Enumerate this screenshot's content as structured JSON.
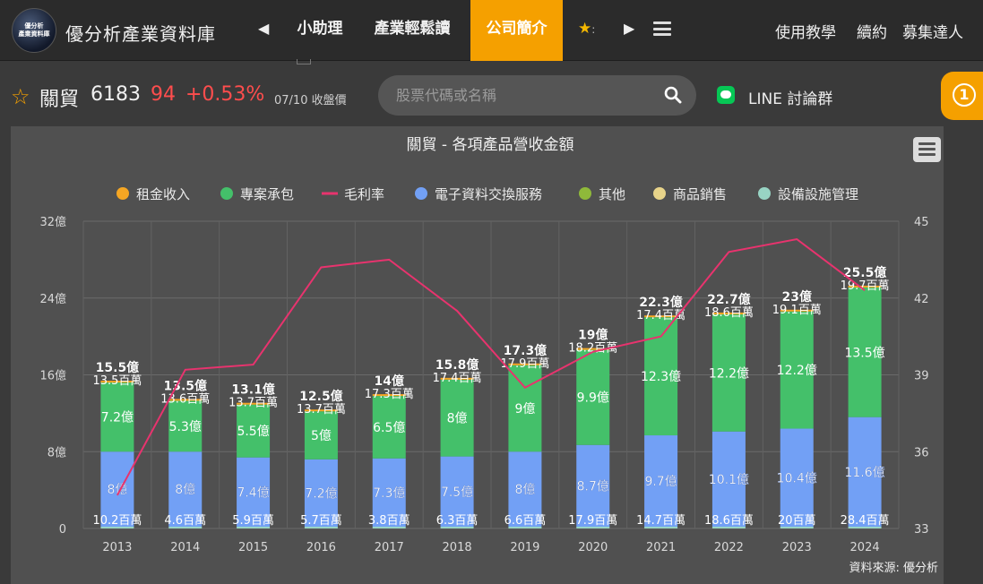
{
  "topbar": {
    "logo_line1": "優分析",
    "logo_line2": "產業資料庫",
    "site_title": "優分析產業資料庫",
    "nav_items": [
      {
        "label": "小助理"
      },
      {
        "label": "產業輕鬆讀"
      },
      {
        "label": "公司簡介"
      }
    ],
    "right_links": [
      {
        "label": "使用教學"
      },
      {
        "label": "續約"
      },
      {
        "label": "募集達人"
      }
    ],
    "colors": {
      "active_tab": "#f5a000"
    }
  },
  "stock": {
    "name": "關貿",
    "code": "6183",
    "price": "94",
    "change": "+0.53%",
    "date_label": "07/10 收盤價",
    "price_color": "#ff4d4d"
  },
  "search": {
    "placeholder": "股票代碼或名稱"
  },
  "line_group": {
    "label": "LINE 討論群"
  },
  "notification": {
    "count": "1"
  },
  "chart_data": {
    "type": "bar",
    "title": "關貿 - 各項產品營收金額",
    "source": "資料來源: 優分析",
    "categories": [
      "2013",
      "2014",
      "2015",
      "2016",
      "2017",
      "2018",
      "2019",
      "2020",
      "2021",
      "2022",
      "2023",
      "2024"
    ],
    "y_left": {
      "ticks": [
        "0",
        "8億",
        "16億",
        "24億",
        "32億"
      ],
      "range": [
        0,
        32
      ],
      "unit": "億"
    },
    "y_right": {
      "ticks": [
        "33",
        "36",
        "39",
        "42",
        "45"
      ],
      "range": [
        33,
        45
      ]
    },
    "legend": [
      {
        "name": "租金收入",
        "color": "#f5a623",
        "marker": "dot"
      },
      {
        "name": "專案承包",
        "color": "#44c06a",
        "marker": "dot"
      },
      {
        "name": "毛利率",
        "color": "#e8336e",
        "marker": "line"
      },
      {
        "name": "電子資料交換服務",
        "color": "#72a0f5",
        "marker": "dot"
      },
      {
        "name": "其他",
        "color": "#8fb93a",
        "marker": "dot"
      },
      {
        "name": "商品銷售",
        "color": "#e8d48a",
        "marker": "dot"
      },
      {
        "name": "設備設施管理",
        "color": "#98d4c4",
        "marker": "dot"
      }
    ],
    "series": [
      {
        "name": "電子資料交換服務",
        "color": "#72a0f5",
        "values": [
          8,
          8,
          7.4,
          7.2,
          7.3,
          7.5,
          8,
          8.7,
          9.7,
          10.1,
          10.4,
          11.6
        ],
        "labels": [
          "8億",
          "8億",
          "7.4億",
          "7.2億",
          "7.3億",
          "7.5億",
          "8億",
          "8.7億",
          "9.7億",
          "10.1億",
          "10.4億",
          "11.6億"
        ]
      },
      {
        "name": "專案承包",
        "color": "#44c06a",
        "values": [
          7.2,
          5.3,
          5.5,
          5,
          6.5,
          8,
          9,
          9.9,
          12.3,
          12.2,
          12.2,
          13.5
        ],
        "labels": [
          "7.2億",
          "5.3億",
          "5.5億",
          "5億",
          "6.5億",
          "8億",
          "9億",
          "9.9億",
          "12.3億",
          "12.2億",
          "12.2億",
          "13.5億"
        ]
      },
      {
        "name": "租金收入",
        "color": "#f5a623",
        "values": [
          0.135,
          0.136,
          0.137,
          0.137,
          0.173,
          0.174,
          0.179,
          0.182,
          0.174,
          0.186,
          0.191,
          0.197
        ],
        "labels": [
          "13.5百萬",
          "13.6百萬",
          "13.7百萬",
          "13.7百萬",
          "17.3百萬",
          "17.4百萬",
          "17.9百萬",
          "18.2百萬",
          "17.4百萬",
          "18.6百萬",
          "19.1百萬",
          "19.7百萬"
        ]
      },
      {
        "name": "設備設施管理",
        "color": "#98d4c4",
        "bottom_labels": [
          "10.2百萬",
          "4.6百萬",
          "5.9百萬",
          "5.7百萬",
          "3.8百萬",
          "6.3百萬",
          "6.6百萬",
          "17.9百萬",
          "14.7百萬",
          "18.6百萬",
          "20百萬",
          "28.4百萬"
        ]
      }
    ],
    "totals": [
      "15.5億",
      "13.5億",
      "13.1億",
      "12.5億",
      "14億",
      "15.8億",
      "17.3億",
      "19億",
      "22.3億",
      "22.7億",
      "23億",
      "25.5億"
    ],
    "total_values": [
      15.5,
      13.5,
      13.1,
      12.5,
      14,
      15.8,
      17.3,
      19,
      22.3,
      22.7,
      23,
      25.5
    ],
    "gross_margin": {
      "name": "毛利率",
      "color": "#e8336e",
      "values": [
        34.3,
        39.2,
        39.4,
        43.2,
        43.5,
        41.5,
        38.5,
        39.9,
        40.5,
        43.8,
        44.3,
        42.3
      ]
    },
    "grid": true,
    "legend_position": "top"
  }
}
